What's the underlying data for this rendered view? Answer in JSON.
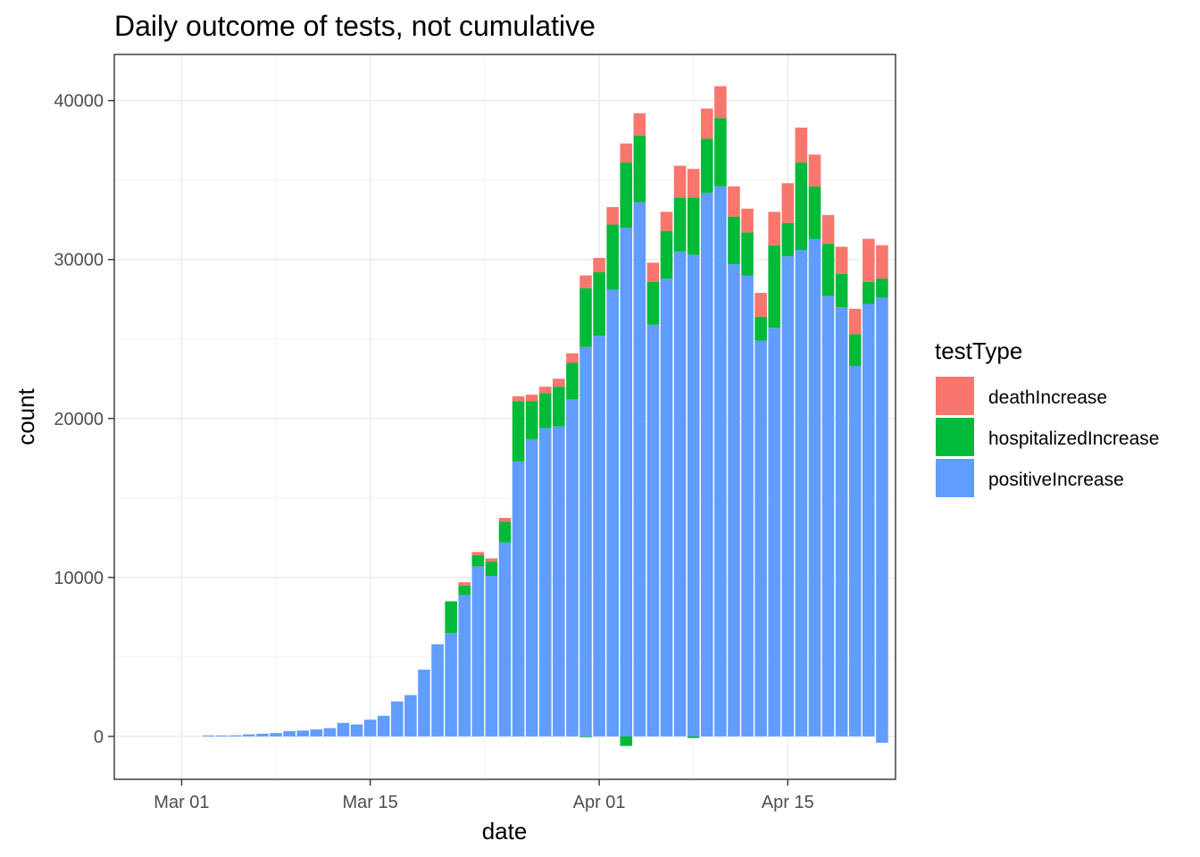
{
  "chart_data": {
    "type": "bar",
    "stacked": true,
    "title": "Daily outcome of tests, not cumulative",
    "xlabel": "date",
    "ylabel": "count",
    "x_tick_labels": [
      "Mar 01",
      "Mar 15",
      "Apr 01",
      "Apr 15"
    ],
    "x_tick_dates": [
      "2020-03-01",
      "2020-03-15",
      "2020-04-01",
      "2020-04-15"
    ],
    "y_ticks": [
      0,
      10000,
      20000,
      30000,
      40000
    ],
    "y_tick_labels": [
      "0",
      "10000",
      "20000",
      "30000",
      "40000"
    ],
    "xlim": [
      "2020-02-25",
      "2020-04-23"
    ],
    "ylim": [
      -2700,
      42900
    ],
    "grid": true,
    "legend": {
      "title": "testType",
      "position": "right",
      "entries": [
        "deathIncrease",
        "hospitalizedIncrease",
        "positiveIncrease"
      ]
    },
    "colors": {
      "deathIncrease": "#F8766D",
      "hospitalizedIncrease": "#00BA38",
      "positiveIncrease": "#619CFF"
    },
    "dates": [
      "2020-03-03",
      "2020-03-04",
      "2020-03-05",
      "2020-03-06",
      "2020-03-07",
      "2020-03-08",
      "2020-03-09",
      "2020-03-10",
      "2020-03-11",
      "2020-03-12",
      "2020-03-13",
      "2020-03-14",
      "2020-03-15",
      "2020-03-16",
      "2020-03-17",
      "2020-03-18",
      "2020-03-19",
      "2020-03-20",
      "2020-03-21",
      "2020-03-22",
      "2020-03-23",
      "2020-03-24",
      "2020-03-25",
      "2020-03-26",
      "2020-03-27",
      "2020-03-28",
      "2020-03-29",
      "2020-03-30",
      "2020-03-31",
      "2020-04-01",
      "2020-04-02",
      "2020-04-03",
      "2020-04-04",
      "2020-04-05",
      "2020-04-06",
      "2020-04-07",
      "2020-04-08",
      "2020-04-09",
      "2020-04-10",
      "2020-04-11",
      "2020-04-12",
      "2020-04-13",
      "2020-04-14",
      "2020-04-15",
      "2020-04-16",
      "2020-04-17",
      "2020-04-18",
      "2020-04-19",
      "2020-04-20",
      "2020-04-21",
      "2020-04-22"
    ],
    "series": [
      {
        "name": "positiveIncrease",
        "values": [
          60,
          60,
          70,
          130,
          170,
          210,
          330,
          370,
          440,
          520,
          850,
          750,
          1050,
          1300,
          2200,
          2600,
          4200,
          5800,
          6500,
          8900,
          10700,
          10100,
          12200,
          17300,
          18700,
          19400,
          19500,
          21200,
          24500,
          25200,
          28100,
          32000,
          33600,
          25900,
          28800,
          30500,
          30300,
          34200,
          34600,
          29700,
          29000,
          24900,
          25700,
          30200,
          30600,
          31300,
          27700,
          27000,
          23300,
          27200,
          27600
        ]
      },
      {
        "name": "hospitalizedIncrease",
        "values": [
          0,
          0,
          0,
          0,
          0,
          0,
          0,
          0,
          0,
          0,
          0,
          0,
          0,
          0,
          0,
          0,
          0,
          0,
          2000,
          600,
          700,
          900,
          1300,
          3800,
          2400,
          2200,
          2500,
          2300,
          3700,
          4000,
          4100,
          4100,
          4200,
          2700,
          3000,
          3400,
          3600,
          3400,
          4300,
          3000,
          2700,
          1500,
          5200,
          2100,
          5500,
          3300,
          3300,
          2100,
          2000,
          1400,
          1200
        ]
      },
      {
        "name": "deathIncrease",
        "values": [
          0,
          0,
          0,
          0,
          0,
          0,
          0,
          0,
          0,
          0,
          0,
          0,
          0,
          0,
          0,
          0,
          0,
          0,
          0,
          200,
          200,
          200,
          250,
          300,
          400,
          400,
          500,
          600,
          800,
          900,
          1100,
          1200,
          1400,
          1200,
          1200,
          2000,
          1800,
          1900,
          2000,
          1900,
          1500,
          1500,
          2100,
          2500,
          2200,
          2000,
          1800,
          1700,
          1600,
          2700,
          2100
        ]
      }
    ],
    "negative_values": {
      "positiveIncrease": {
        "2020-04-22": -400
      },
      "hospitalizedIncrease": {
        "2020-03-31": -50,
        "2020-04-03": -600,
        "2020-04-08": -100
      }
    }
  }
}
